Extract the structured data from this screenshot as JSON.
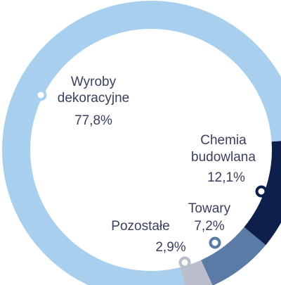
{
  "chart_data": {
    "type": "donut",
    "categories": [
      "Wyroby dekoracyjne",
      "Chemia budowlana",
      "Towary",
      "Pozostałe"
    ],
    "values": [
      77.8,
      12.1,
      7.2,
      2.9
    ],
    "value_labels": [
      "77,8%",
      "12,1%",
      "7,2%",
      "2,9%"
    ],
    "colors": [
      "#a8d0ee",
      "#0f1f4c",
      "#5b7ba6",
      "#babdcc"
    ]
  }
}
